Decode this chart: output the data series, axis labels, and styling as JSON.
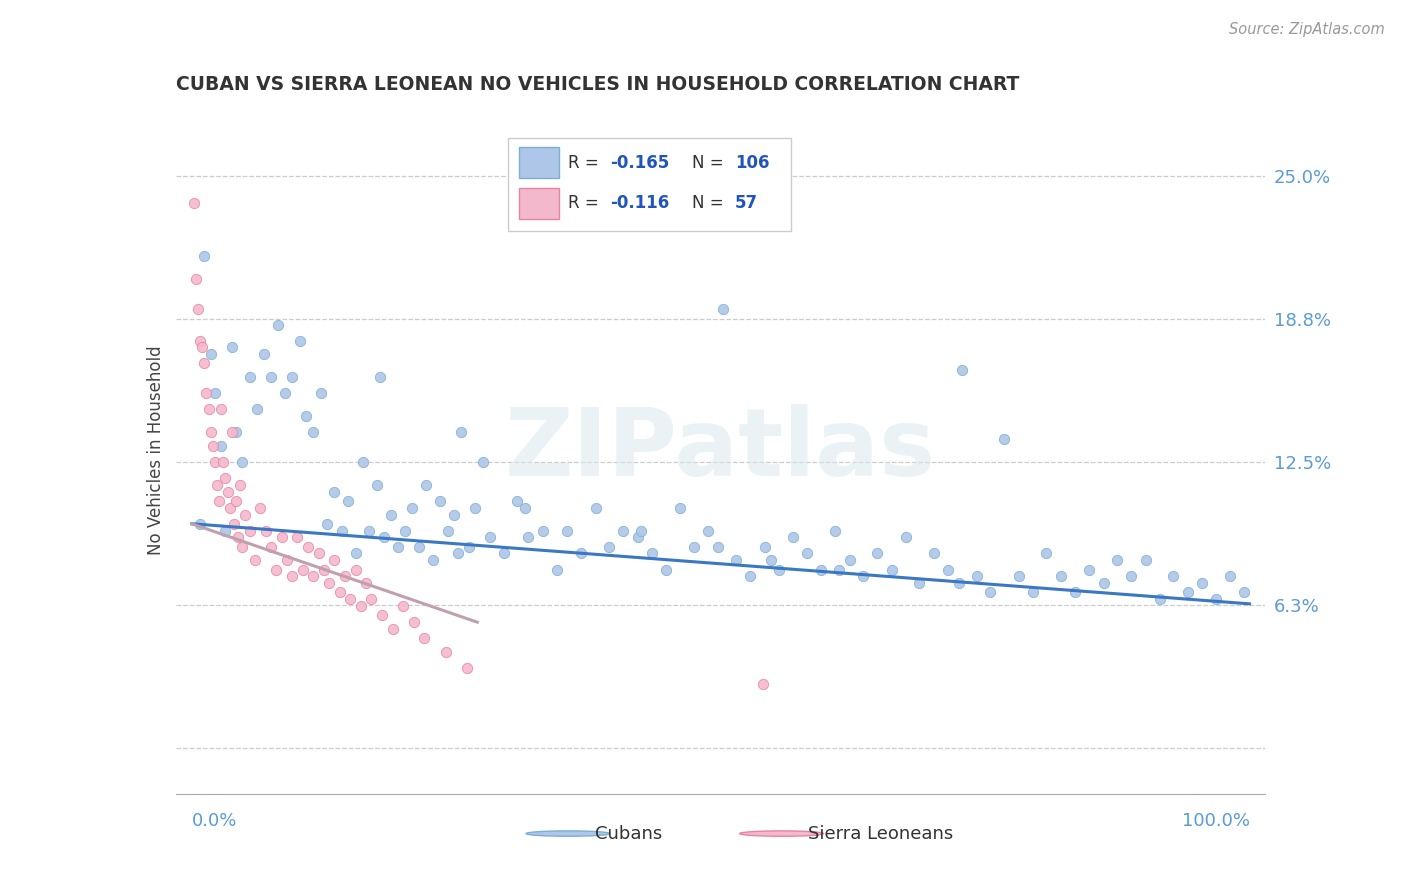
{
  "title": "CUBAN VS SIERRA LEONEAN NO VEHICLES IN HOUSEHOLD CORRELATION CHART",
  "source": "Source: ZipAtlas.com",
  "ylabel": "No Vehicles in Household",
  "xmin": 0.0,
  "xmax": 1.0,
  "ymin": -0.02,
  "ymax": 0.28,
  "cubans_R": -0.165,
  "cubans_N": 106,
  "sierra_R": -0.116,
  "sierra_N": 57,
  "blue_scatter_face": "#aec6e8",
  "blue_scatter_edge": "#7bafd4",
  "pink_scatter_face": "#f4b8cc",
  "pink_scatter_edge": "#e8839f",
  "trend_blue": "#3b78c4",
  "trend_pink": "#c0a0b0",
  "watermark_color": "#e0e8f0",
  "title_color": "#333333",
  "axis_label_color": "#5b9bd5",
  "legend_R_color": "#2255bb",
  "legend_N_color": "#2255bb",
  "blue_legend_face": "#aec6e8",
  "blue_legend_edge": "#7bafd4",
  "pink_legend_face": "#f4b8cc",
  "pink_legend_edge": "#e8839f",
  "cubans_x": [
    0.008,
    0.012,
    0.018,
    0.022,
    0.028,
    0.032,
    0.038,
    0.042,
    0.048,
    0.055,
    0.062,
    0.068,
    0.075,
    0.082,
    0.088,
    0.095,
    0.102,
    0.108,
    0.115,
    0.122,
    0.128,
    0.135,
    0.142,
    0.148,
    0.155,
    0.162,
    0.168,
    0.175,
    0.182,
    0.188,
    0.195,
    0.202,
    0.208,
    0.215,
    0.222,
    0.228,
    0.235,
    0.242,
    0.248,
    0.255,
    0.262,
    0.268,
    0.275,
    0.282,
    0.295,
    0.308,
    0.318,
    0.332,
    0.345,
    0.355,
    0.368,
    0.382,
    0.395,
    0.408,
    0.422,
    0.435,
    0.448,
    0.462,
    0.475,
    0.488,
    0.502,
    0.515,
    0.528,
    0.542,
    0.555,
    0.568,
    0.582,
    0.595,
    0.608,
    0.622,
    0.635,
    0.648,
    0.662,
    0.675,
    0.688,
    0.702,
    0.715,
    0.728,
    0.742,
    0.755,
    0.768,
    0.782,
    0.795,
    0.808,
    0.822,
    0.835,
    0.848,
    0.862,
    0.875,
    0.888,
    0.902,
    0.915,
    0.928,
    0.942,
    0.955,
    0.968,
    0.982,
    0.995,
    0.252,
    0.178,
    0.315,
    0.425,
    0.498,
    0.548,
    0.612,
    0.725
  ],
  "cubans_y": [
    0.098,
    0.215,
    0.172,
    0.155,
    0.132,
    0.095,
    0.175,
    0.138,
    0.125,
    0.162,
    0.148,
    0.172,
    0.162,
    0.185,
    0.155,
    0.162,
    0.178,
    0.145,
    0.138,
    0.155,
    0.098,
    0.112,
    0.095,
    0.108,
    0.085,
    0.125,
    0.095,
    0.115,
    0.092,
    0.102,
    0.088,
    0.095,
    0.105,
    0.088,
    0.115,
    0.082,
    0.108,
    0.095,
    0.102,
    0.138,
    0.088,
    0.105,
    0.125,
    0.092,
    0.085,
    0.108,
    0.092,
    0.095,
    0.078,
    0.095,
    0.085,
    0.105,
    0.088,
    0.095,
    0.092,
    0.085,
    0.078,
    0.105,
    0.088,
    0.095,
    0.192,
    0.082,
    0.075,
    0.088,
    0.078,
    0.092,
    0.085,
    0.078,
    0.095,
    0.082,
    0.075,
    0.085,
    0.078,
    0.092,
    0.072,
    0.085,
    0.078,
    0.165,
    0.075,
    0.068,
    0.135,
    0.075,
    0.068,
    0.085,
    0.075,
    0.068,
    0.078,
    0.072,
    0.082,
    0.075,
    0.082,
    0.065,
    0.075,
    0.068,
    0.072,
    0.065,
    0.075,
    0.068,
    0.085,
    0.162,
    0.105,
    0.095,
    0.088,
    0.082,
    0.078,
    0.072
  ],
  "sierra_x": [
    0.002,
    0.004,
    0.006,
    0.008,
    0.01,
    0.012,
    0.014,
    0.016,
    0.018,
    0.02,
    0.022,
    0.024,
    0.026,
    0.028,
    0.03,
    0.032,
    0.034,
    0.036,
    0.038,
    0.04,
    0.042,
    0.044,
    0.046,
    0.048,
    0.05,
    0.055,
    0.06,
    0.065,
    0.07,
    0.075,
    0.08,
    0.085,
    0.09,
    0.095,
    0.1,
    0.105,
    0.11,
    0.115,
    0.12,
    0.125,
    0.13,
    0.135,
    0.14,
    0.145,
    0.15,
    0.155,
    0.16,
    0.165,
    0.17,
    0.18,
    0.19,
    0.2,
    0.21,
    0.22,
    0.24,
    0.26,
    0.54
  ],
  "sierra_y": [
    0.238,
    0.205,
    0.192,
    0.178,
    0.175,
    0.168,
    0.155,
    0.148,
    0.138,
    0.132,
    0.125,
    0.115,
    0.108,
    0.148,
    0.125,
    0.118,
    0.112,
    0.105,
    0.138,
    0.098,
    0.108,
    0.092,
    0.115,
    0.088,
    0.102,
    0.095,
    0.082,
    0.105,
    0.095,
    0.088,
    0.078,
    0.092,
    0.082,
    0.075,
    0.092,
    0.078,
    0.088,
    0.075,
    0.085,
    0.078,
    0.072,
    0.082,
    0.068,
    0.075,
    0.065,
    0.078,
    0.062,
    0.072,
    0.065,
    0.058,
    0.052,
    0.062,
    0.055,
    0.048,
    0.042,
    0.035,
    0.028
  ],
  "blue_trend_x0": 0.0,
  "blue_trend_x1": 1.0,
  "blue_trend_y0": 0.098,
  "blue_trend_y1": 0.063,
  "pink_trend_x0": 0.0,
  "pink_trend_x1": 0.27,
  "pink_trend_y0": 0.098,
  "pink_trend_y1": 0.055
}
